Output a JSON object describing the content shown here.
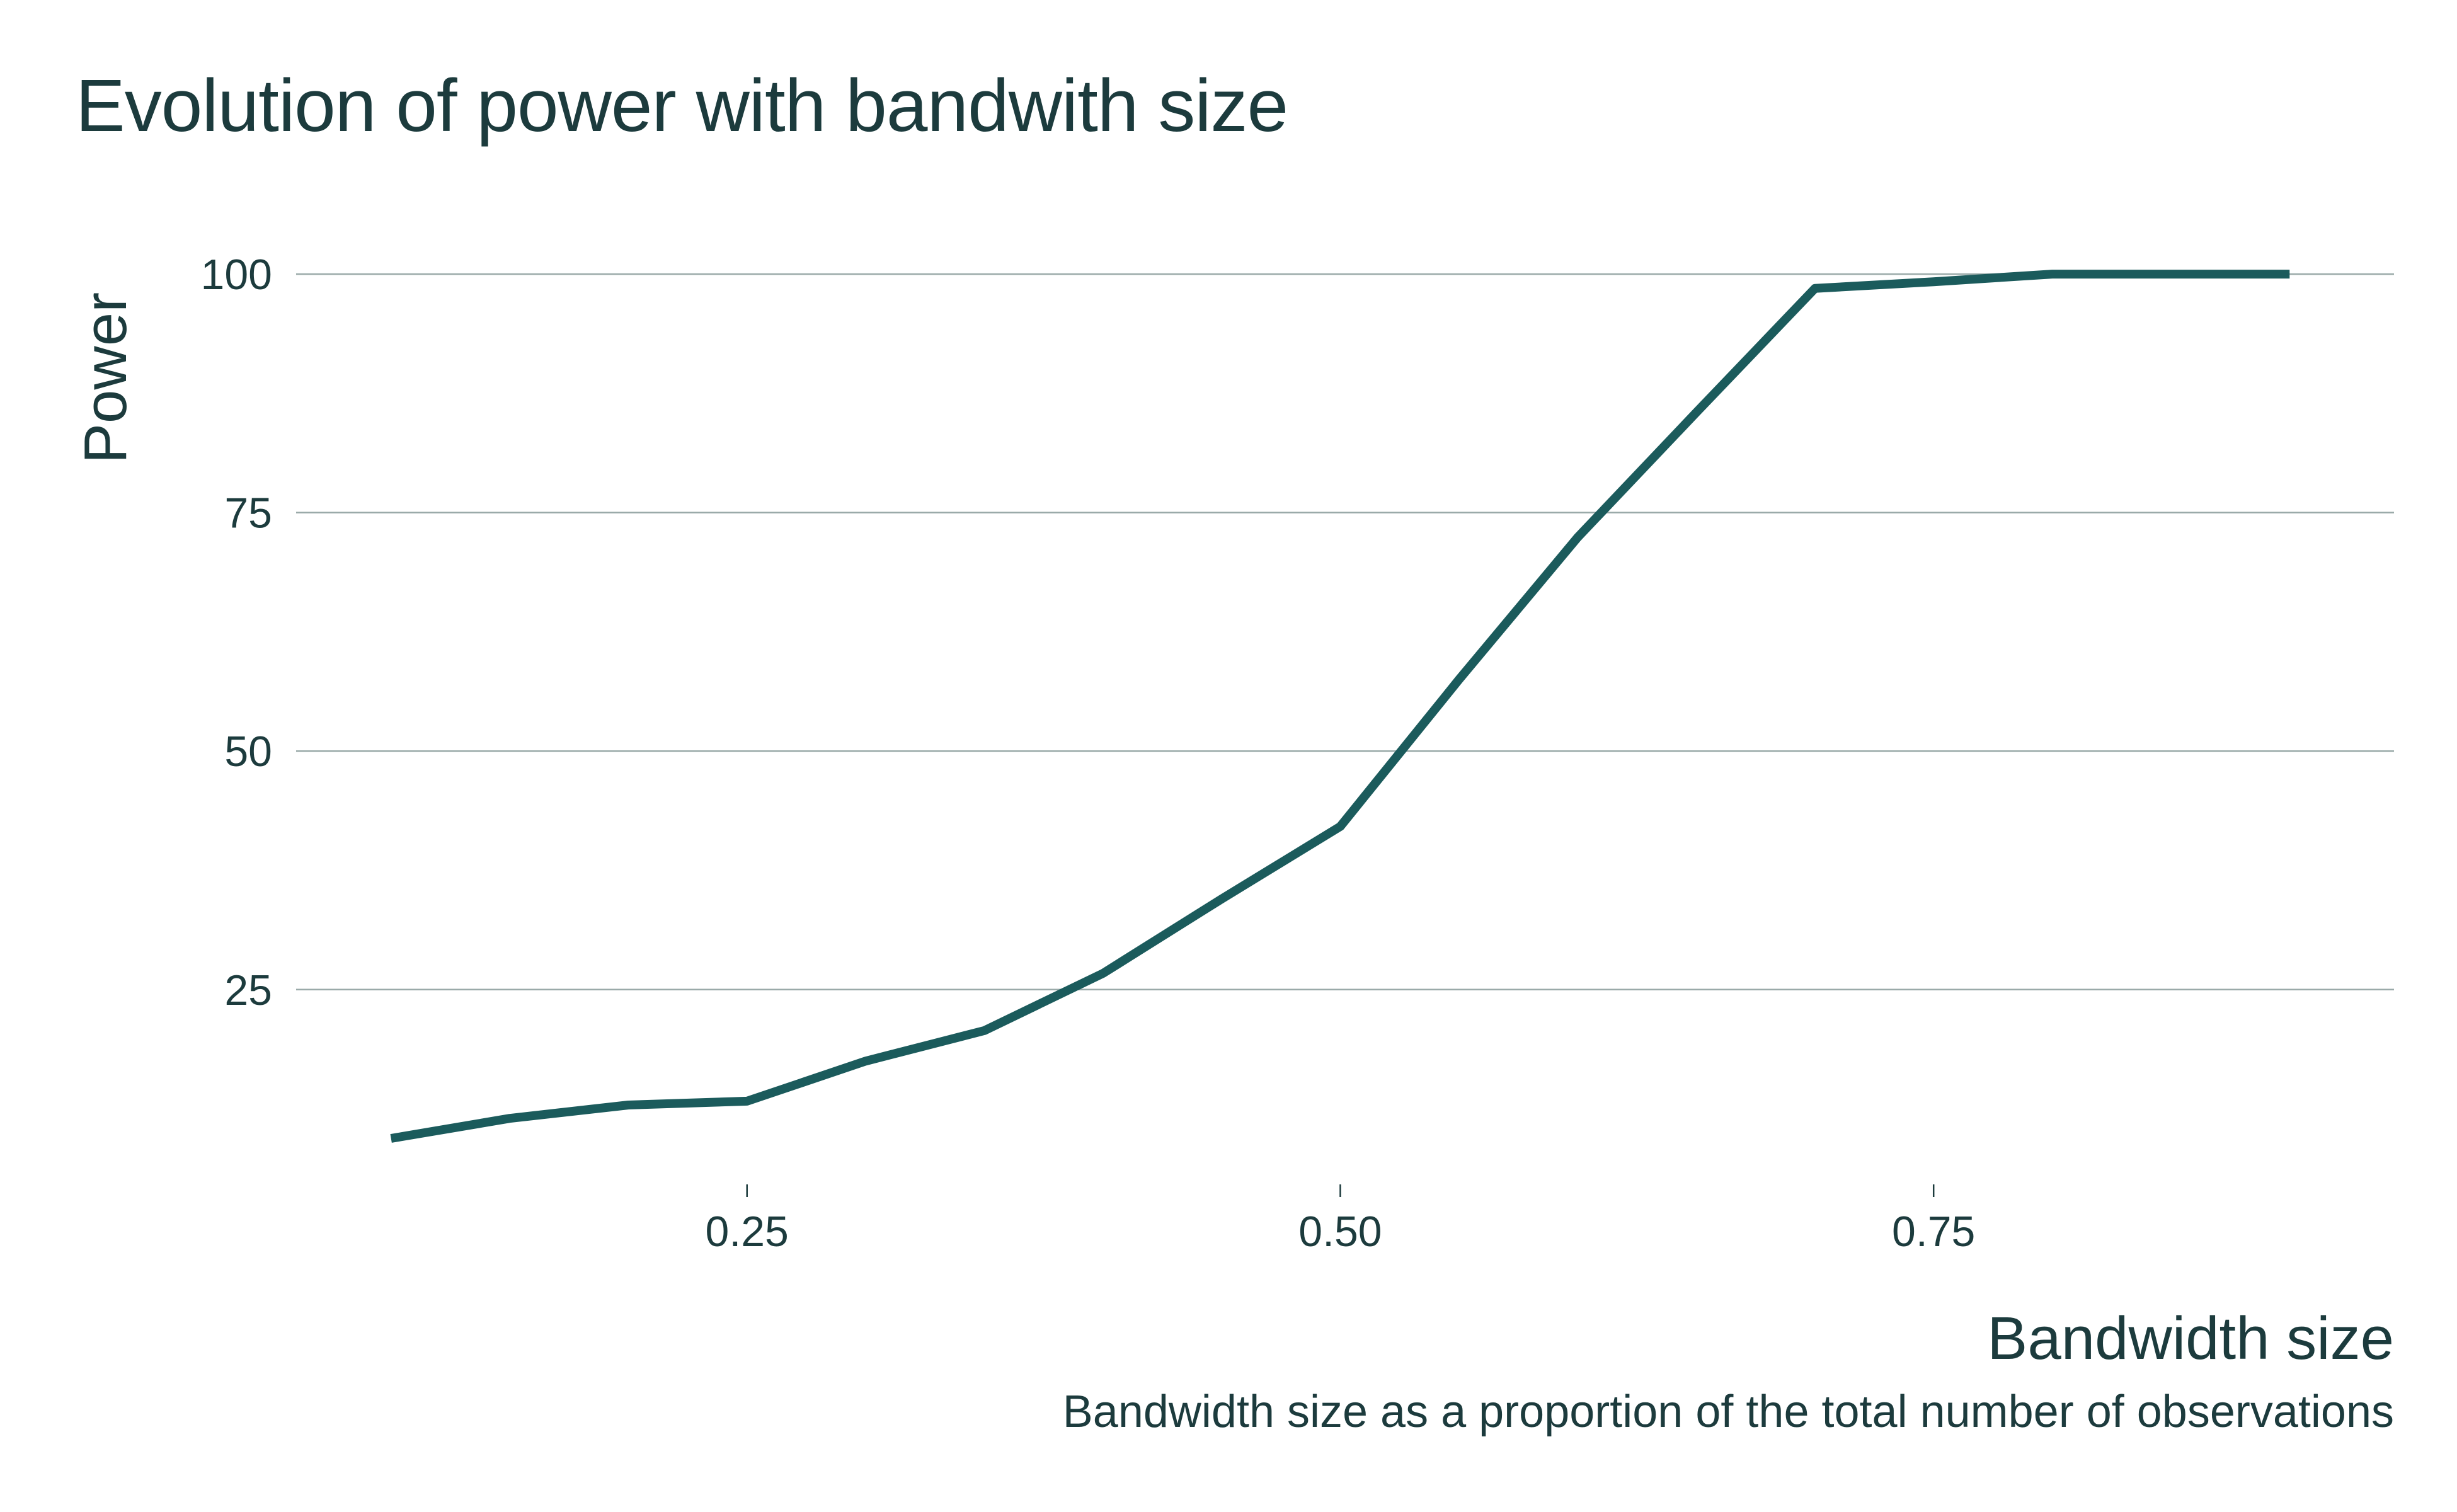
{
  "chart_data": {
    "type": "line",
    "title": "Evolution of power with bandwith size",
    "xlabel": "Bandwidth size",
    "ylabel": "Power",
    "caption": "Bandwidth size as a proportion of the total number of observations",
    "x": [
      0.1,
      0.15,
      0.2,
      0.25,
      0.3,
      0.35,
      0.4,
      0.45,
      0.5,
      0.55,
      0.6,
      0.65,
      0.7,
      0.75,
      0.8,
      0.85,
      0.9
    ],
    "series": [
      {
        "values": [
          9.4,
          11.5,
          12.9,
          13.3,
          17.5,
          20.7,
          26.7,
          34.5,
          42.1,
          57.5,
          72.4,
          85.5,
          98.5,
          99.2,
          100,
          100,
          100
        ]
      }
    ],
    "xticks": [
      "0.25",
      "0.50",
      "0.75"
    ],
    "yticks": [
      "25",
      "50",
      "75",
      "100"
    ],
    "xlim": [
      0.06,
      0.944
    ],
    "ylim": [
      5.9,
      104.3
    ],
    "grid": "horizontal",
    "legend": "none",
    "colors": {
      "line": "#1b5b5c",
      "grid": "#9aaaa9",
      "text": "#1c3b3d"
    }
  }
}
